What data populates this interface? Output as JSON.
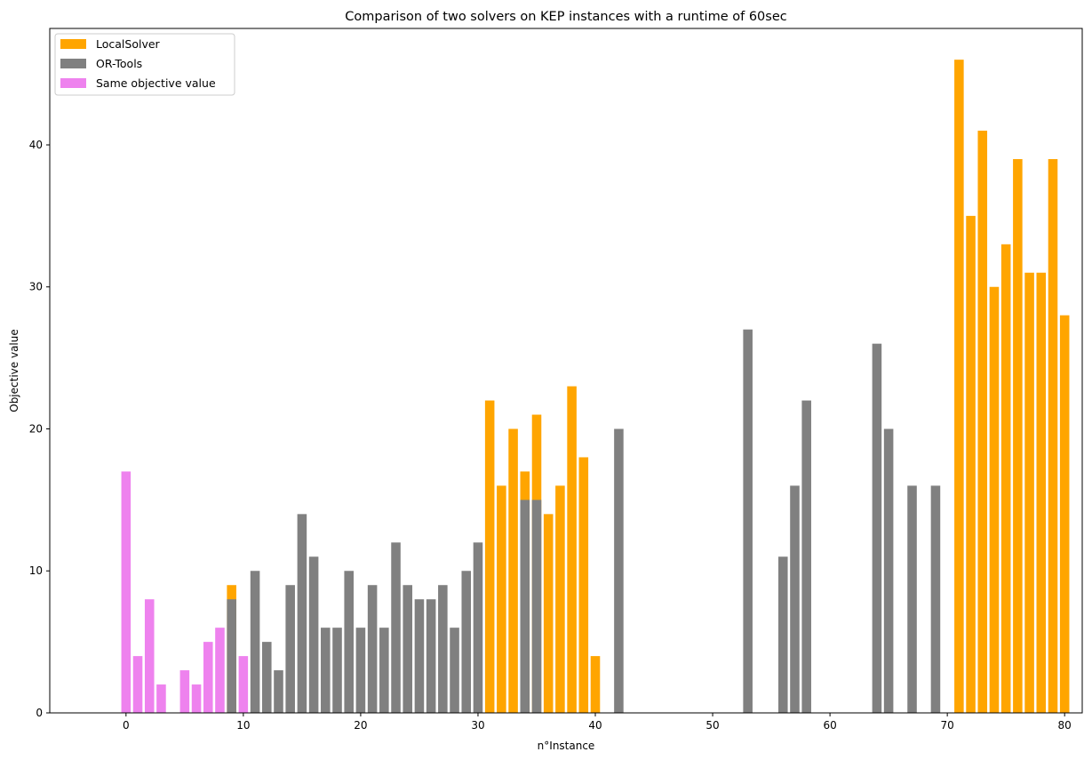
{
  "chart_data": {
    "type": "bar",
    "title": "Comparison of two solvers on KEP instances with a runtime of 60sec",
    "xlabel": "n°Instance",
    "ylabel": "Objective value",
    "xlim": [
      -6.5,
      81.5
    ],
    "ylim": [
      0,
      48.2
    ],
    "xticks": [
      0,
      10,
      20,
      30,
      40,
      50,
      60,
      70,
      80
    ],
    "yticks": [
      0,
      10,
      20,
      30,
      40
    ],
    "grid": false,
    "legend_position": "top-left",
    "series": [
      {
        "name": "LocalSolver",
        "color": "#FFA500",
        "points": [
          [
            9,
            9
          ],
          [
            31,
            22
          ],
          [
            32,
            16
          ],
          [
            33,
            20
          ],
          [
            34,
            17
          ],
          [
            35,
            21
          ],
          [
            36,
            14
          ],
          [
            37,
            16
          ],
          [
            38,
            23
          ],
          [
            39,
            18
          ],
          [
            40,
            4
          ],
          [
            71,
            46
          ],
          [
            72,
            35
          ],
          [
            73,
            41
          ],
          [
            74,
            30
          ],
          [
            75,
            33
          ],
          [
            76,
            39
          ],
          [
            77,
            31
          ],
          [
            78,
            31
          ],
          [
            79,
            39
          ],
          [
            80,
            28
          ]
        ]
      },
      {
        "name": "OR-Tools",
        "color": "#808080",
        "points": [
          [
            9,
            8
          ],
          [
            11,
            10
          ],
          [
            12,
            5
          ],
          [
            13,
            3
          ],
          [
            14,
            9
          ],
          [
            15,
            14
          ],
          [
            16,
            11
          ],
          [
            17,
            6
          ],
          [
            18,
            6
          ],
          [
            19,
            10
          ],
          [
            20,
            6
          ],
          [
            21,
            9
          ],
          [
            22,
            6
          ],
          [
            23,
            12
          ],
          [
            24,
            9
          ],
          [
            25,
            8
          ],
          [
            26,
            8
          ],
          [
            27,
            9
          ],
          [
            28,
            6
          ],
          [
            29,
            10
          ],
          [
            30,
            12
          ],
          [
            34,
            15
          ],
          [
            35,
            15
          ],
          [
            42,
            20
          ],
          [
            53,
            27
          ],
          [
            56,
            11
          ],
          [
            57,
            16
          ],
          [
            58,
            22
          ],
          [
            64,
            26
          ],
          [
            65,
            20
          ],
          [
            67,
            16
          ],
          [
            69,
            16
          ]
        ]
      },
      {
        "name": "Same objective value",
        "color": "#EE82EE",
        "points": [
          [
            0,
            17
          ],
          [
            1,
            4
          ],
          [
            2,
            8
          ],
          [
            3,
            2
          ],
          [
            5,
            3
          ],
          [
            6,
            2
          ],
          [
            7,
            5
          ],
          [
            8,
            6
          ],
          [
            10,
            4
          ]
        ]
      }
    ]
  }
}
